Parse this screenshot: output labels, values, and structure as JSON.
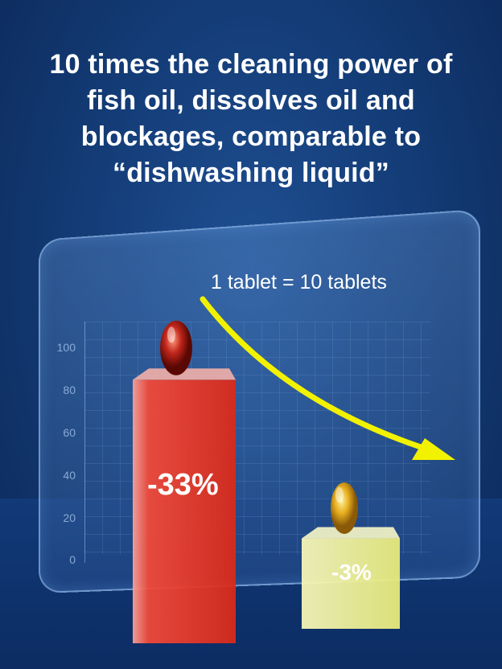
{
  "title_lines": [
    "10 times the cleaning power of",
    "fish oil, dissolves oil and",
    "blockages, comparable to",
    "“dishwashing liquid”"
  ],
  "chart_data": {
    "type": "bar",
    "title": "",
    "annotation": "1 tablet = 10 tablets",
    "y_ticks": [
      "100",
      "80",
      "60",
      "40",
      "20",
      "0"
    ],
    "ylim": [
      0,
      100
    ],
    "grid": true,
    "bars": [
      {
        "label": "-33%",
        "value": 90,
        "color": "#e8321f",
        "capsule_color": "#b01a10"
      },
      {
        "label": "-3%",
        "value": 15,
        "color": "#eef08a",
        "capsule_color": "#e0a418"
      }
    ],
    "arrow_color": "#f2f200"
  }
}
